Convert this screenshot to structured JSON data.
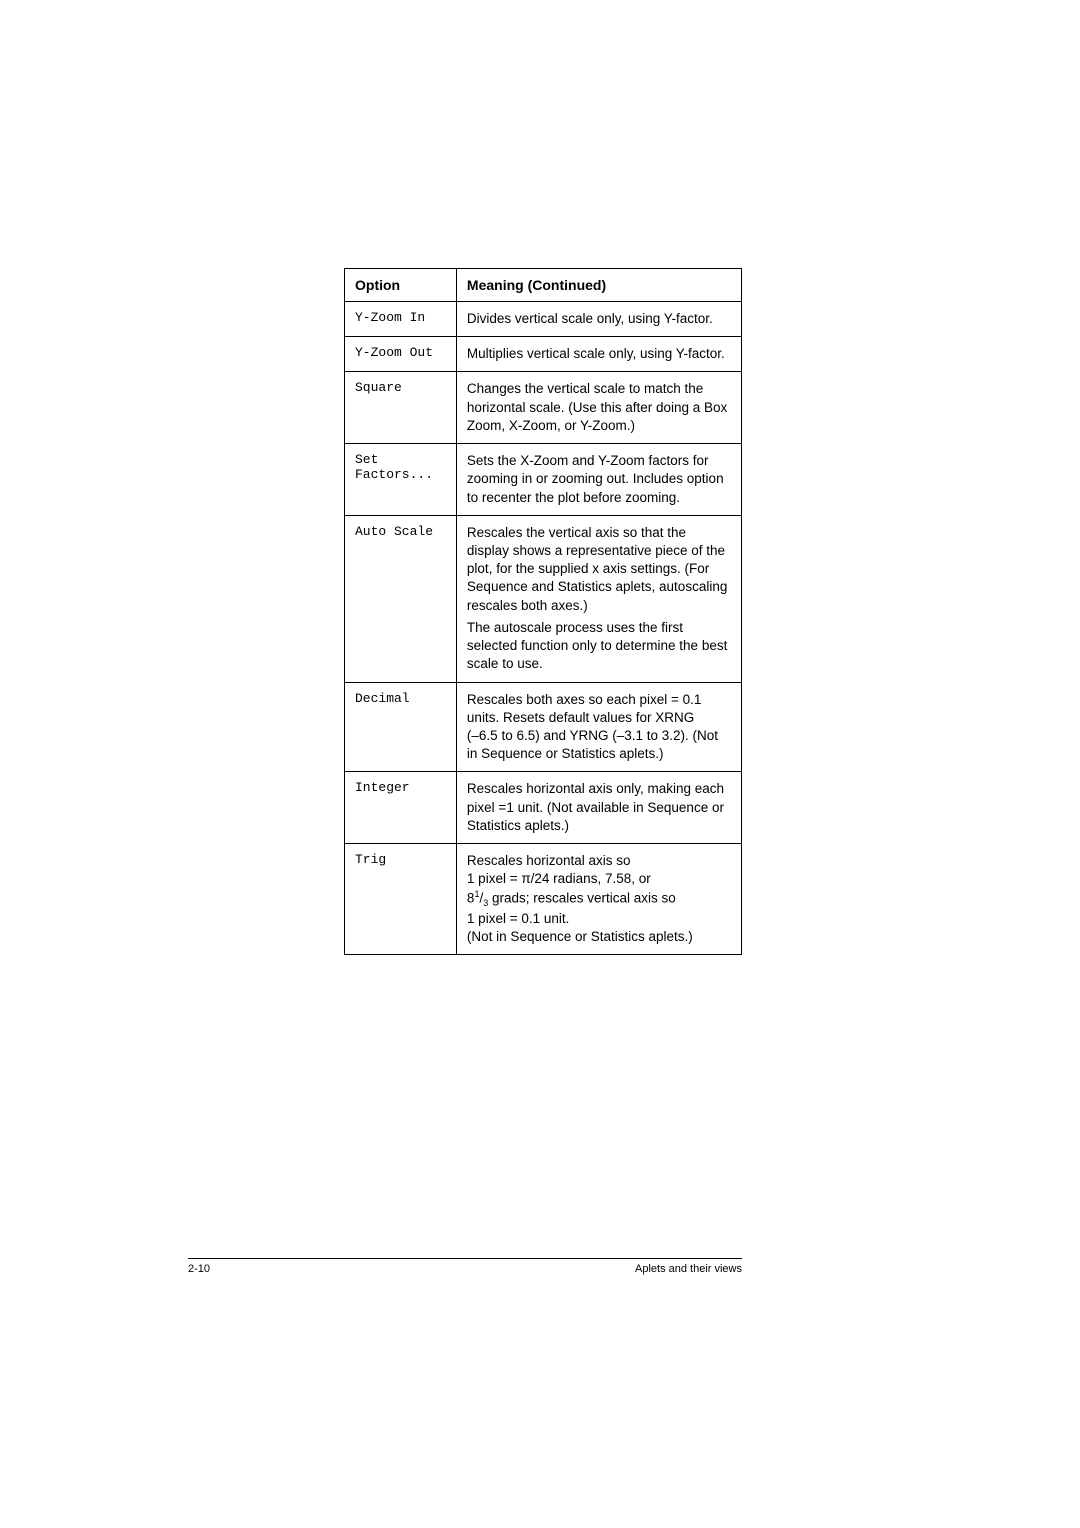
{
  "table": {
    "header": {
      "option": "Option",
      "meaning": "Meaning (Continued)"
    },
    "rows": [
      {
        "option": "Y-Zoom In",
        "meaning": "Divides vertical scale only, using Y-factor."
      },
      {
        "option": "Y-Zoom Out",
        "meaning": "Multiplies vertical scale only, using Y-factor."
      },
      {
        "option": "Square",
        "meaning": "Changes the vertical scale to match the horizontal scale. (Use this after doing a Box Zoom, X-Zoom, or Y-Zoom.)"
      },
      {
        "option": "Set Factors...",
        "meaning": "Sets the X-Zoom and Y-Zoom factors for zooming in or zooming out. Includes option to recenter the plot before zooming."
      },
      {
        "option": "Auto Scale",
        "meaning_p1": "Rescales the vertical axis so that the display shows a representative piece of the plot, for the supplied x axis settings. (For Sequence and Statistics aplets, autoscaling rescales both axes.)",
        "meaning_p2": "The autoscale process uses the first selected function only to determine the best scale to use."
      },
      {
        "option": "Decimal",
        "meaning": "Rescales both axes so each pixel = 0.1 units. Resets default values for XRNG\n(–6.5 to 6.5) and YRNG (–3.1 to 3.2). (Not in Sequence or Statistics aplets.)"
      },
      {
        "option": "Integer",
        "meaning": "Rescales horizontal axis only, making each pixel =1 unit. (Not available in Sequence or Statistics aplets.)"
      },
      {
        "option": "Trig",
        "meaning_pre": "Rescales horizontal axis so\n1 pixel = π/24 radians, 7.58, or\n8",
        "fraction_num": "1",
        "fraction_den": "3",
        "meaning_post": " grads; rescales vertical axis so\n1 pixel = 0.1 unit.\n(Not in Sequence or Statistics aplets.)"
      }
    ]
  },
  "footer": {
    "page_number": "2-10",
    "section_title": "Aplets and their views"
  }
}
